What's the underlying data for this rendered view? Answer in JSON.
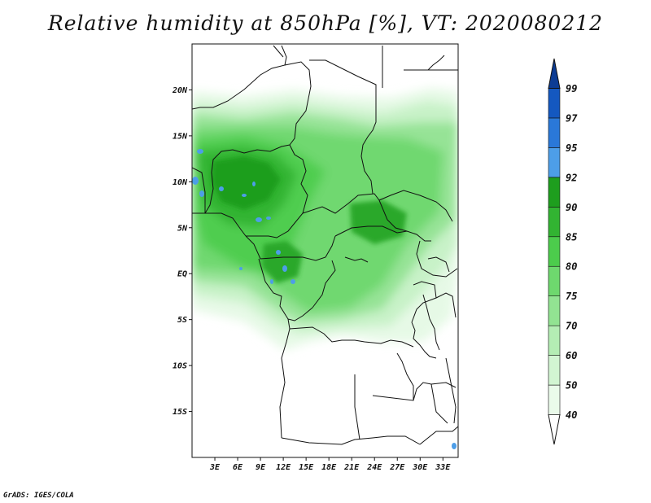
{
  "title": "Relative humidity at 850hPa [%], VT: 2020080212",
  "credit": "GrADS: IGES/COLA",
  "map": {
    "lon_range": [
      0,
      35
    ],
    "lat_range": [
      -20,
      25
    ],
    "lat_labels": [
      {
        "lat": 20,
        "text": "20N"
      },
      {
        "lat": 15,
        "text": "15N"
      },
      {
        "lat": 10,
        "text": "10N"
      },
      {
        "lat": 5,
        "text": "5N"
      },
      {
        "lat": 0,
        "text": "EQ"
      },
      {
        "lat": -5,
        "text": "5S"
      },
      {
        "lat": -10,
        "text": "10S"
      },
      {
        "lat": -15,
        "text": "15S"
      }
    ],
    "lon_labels": [
      {
        "lon": 3,
        "text": "3E"
      },
      {
        "lon": 6,
        "text": "6E"
      },
      {
        "lon": 9,
        "text": "9E"
      },
      {
        "lon": 12,
        "text": "12E"
      },
      {
        "lon": 15,
        "text": "15E"
      },
      {
        "lon": 18,
        "text": "18E"
      },
      {
        "lon": 21,
        "text": "21E"
      },
      {
        "lon": 24,
        "text": "24E"
      },
      {
        "lon": 27,
        "text": "27E"
      },
      {
        "lon": 30,
        "text": "30E"
      },
      {
        "lon": 33,
        "text": "33E"
      }
    ]
  },
  "colorbar": {
    "labels": [
      "40",
      "50",
      "60",
      "70",
      "75",
      "80",
      "85",
      "90",
      "92",
      "95",
      "97",
      "99"
    ],
    "colors": [
      "#ffffff",
      "#eafbea",
      "#d2f5d2",
      "#b4edb4",
      "#92e392",
      "#6ed86e",
      "#4ccc4c",
      "#32b432",
      "#1e9e1e",
      "#4d9ee8",
      "#2a78d8",
      "#1458c0",
      "#0c3c94"
    ]
  }
}
